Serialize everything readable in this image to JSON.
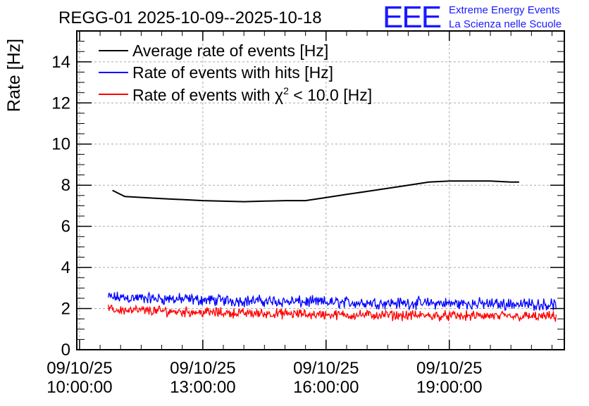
{
  "logo": {
    "text": "EEE",
    "line1": "Extreme Energy Events",
    "line2": "La Scienza nelle Scuole",
    "color": "#1a1aff"
  },
  "chart_data": {
    "type": "line",
    "title": "REGG-01 2025-10-09--2025-10-18",
    "ylabel": "Rate [Hz]",
    "xlabel": "",
    "ylim": [
      0,
      15.5
    ],
    "yticks": [
      0,
      2,
      4,
      6,
      8,
      10,
      12,
      14
    ],
    "yticklabels": [
      "0",
      "2",
      "4",
      "6",
      "8",
      "10",
      "12",
      "14"
    ],
    "xlim_hours": [
      9.95,
      21.8
    ],
    "xticks_hours": [
      10,
      13,
      16,
      19
    ],
    "xticklabels": [
      [
        "09/10/25",
        "10:00:00"
      ],
      [
        "09/10/25",
        "13:00:00"
      ],
      [
        "09/10/25",
        "16:00:00"
      ],
      [
        "09/10/25",
        "19:00:00"
      ]
    ],
    "grid": true,
    "legend_position": "top-left",
    "legend": {
      "avg": "Average rate of events [Hz]",
      "hits": "Rate of events with hits [Hz]",
      "chi_prefix": "Rate of events with ",
      "chi_symbol": "χ",
      "chi_sup": "2",
      "chi_suffix": " < 10.0 [Hz]"
    },
    "series": [
      {
        "name": "Average rate of events [Hz]",
        "color": "#000000",
        "x": [
          10.8,
          11.1,
          12.0,
          13.0,
          14.0,
          15.0,
          15.5,
          16.0,
          16.5,
          17.0,
          17.5,
          18.0,
          18.5,
          19.0,
          19.5,
          20.0,
          20.5,
          20.7
        ],
        "y": [
          7.75,
          7.45,
          7.35,
          7.25,
          7.2,
          7.25,
          7.25,
          7.4,
          7.55,
          7.7,
          7.85,
          8.0,
          8.15,
          8.2,
          8.2,
          8.2,
          8.15,
          8.15
        ]
      },
      {
        "name": "Rate of events with hits [Hz]",
        "color": "#0000ff",
        "x_start": 10.7,
        "x_end": 21.6,
        "mean": [
          2.55,
          2.4,
          2.3,
          2.25,
          2.2
        ],
        "noise": 0.35
      },
      {
        "name": "Rate of events with χ2 < 10.0 [Hz]",
        "color": "#ff0000",
        "x_start": 10.7,
        "x_end": 21.6,
        "mean": [
          1.95,
          1.8,
          1.7,
          1.65,
          1.6
        ],
        "noise": 0.3
      }
    ]
  }
}
